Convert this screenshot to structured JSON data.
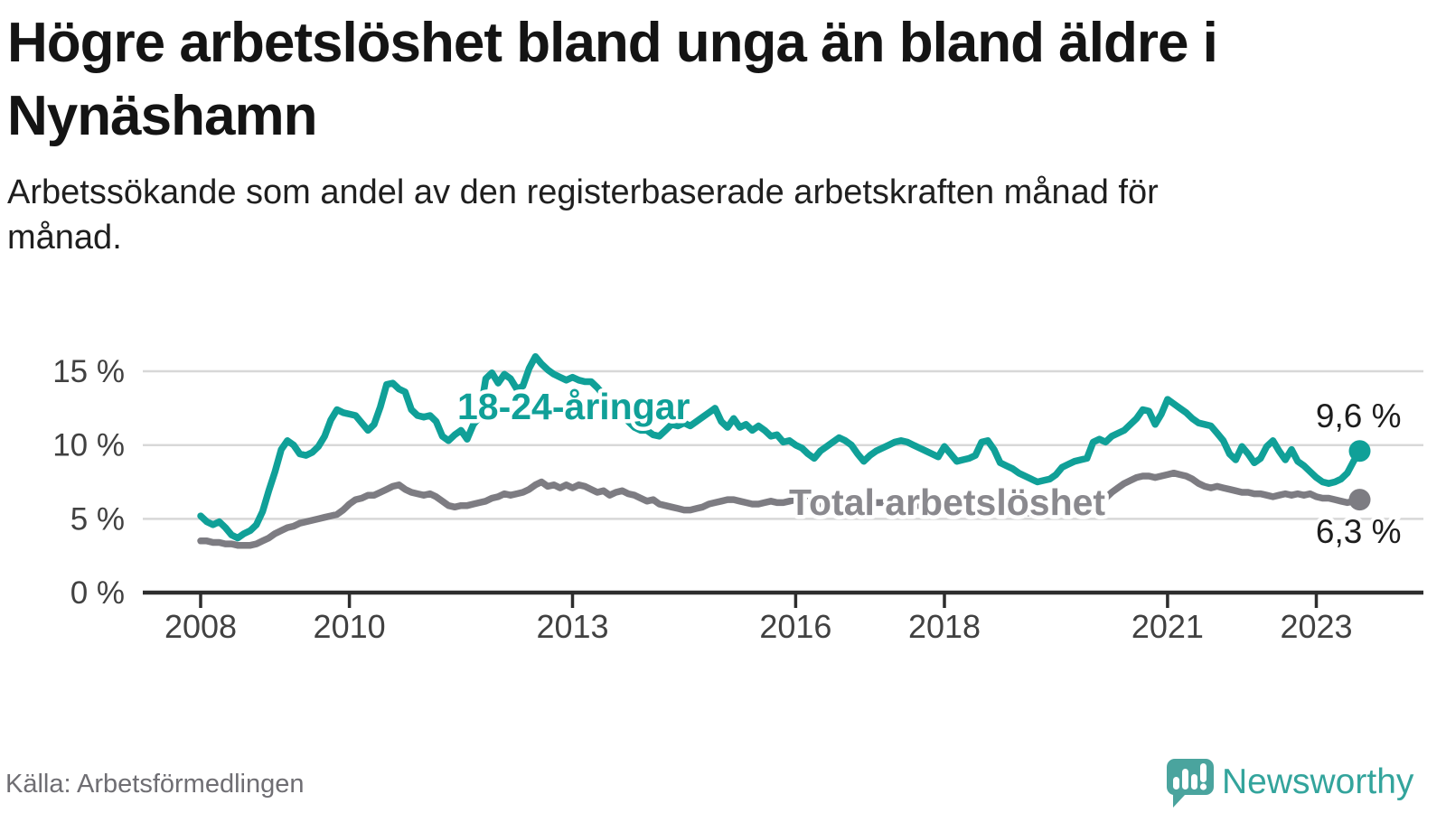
{
  "header": {
    "title": "Högre arbetslöshet bland unga än bland äldre i Nynäshamn",
    "subtitle": "Arbetssökande som andel av den registerbaserade arbetskraften månad för månad."
  },
  "footer": {
    "source": "Källa: Arbetsförmedlingen",
    "brand": "Newsworthy"
  },
  "colors": {
    "youth_line": "#10a098",
    "total_line": "#7d7c82",
    "total_label": "#8a898e",
    "end_label_text": "#1d1d1d",
    "grid": "#d8d8d8",
    "axis": "#2d2d2d",
    "tick_text": "#414141",
    "logo_teal": "#4aa49e"
  },
  "chart_data": {
    "type": "line",
    "title": "Högre arbetslöshet bland unga än bland äldre i Nynäshamn",
    "xlabel": "",
    "ylabel": "%",
    "frequency": "monthly",
    "x_start": "2008-01",
    "x_end": "2023-08",
    "ylim": [
      0,
      16.8
    ],
    "grid": "horizontal",
    "legend": "inline-labels",
    "y_tick_values": [
      0,
      5,
      10,
      15
    ],
    "y_tick_labels": [
      "0 %",
      "5 %",
      "10 %",
      "15 %"
    ],
    "x_tick_values": [
      2008,
      2010,
      2013,
      2016,
      2018,
      2021,
      2023
    ],
    "x_tick_labels": [
      "2008",
      "2010",
      "2013",
      "2016",
      "2018",
      "2021",
      "2023"
    ],
    "series": [
      {
        "name": "18-24-åringar",
        "color": "#10a098",
        "end_label": "9,6 %",
        "end_value": 9.6,
        "values": [
          5.2,
          4.8,
          4.6,
          4.8,
          4.4,
          3.9,
          3.7,
          4.0,
          4.2,
          4.6,
          5.5,
          6.9,
          8.2,
          9.7,
          10.3,
          10.0,
          9.4,
          9.3,
          9.5,
          9.9,
          10.6,
          11.7,
          12.4,
          12.2,
          12.1,
          12.0,
          11.5,
          11.0,
          11.4,
          12.6,
          14.1,
          14.2,
          13.8,
          13.6,
          12.4,
          12.0,
          11.9,
          12.0,
          11.6,
          10.6,
          10.3,
          10.7,
          11.0,
          10.4,
          11.4,
          11.9,
          14.5,
          14.9,
          14.2,
          14.8,
          14.5,
          13.8,
          14.0,
          15.2,
          16.0,
          15.5,
          15.1,
          14.8,
          14.6,
          14.4,
          14.6,
          14.4,
          14.3,
          14.3,
          13.9,
          13.4,
          12.9,
          12.4,
          12.0,
          11.6,
          11.2,
          11.0,
          11.0,
          10.7,
          10.6,
          11.0,
          11.4,
          11.3,
          11.5,
          11.3,
          11.6,
          11.9,
          12.2,
          12.5,
          11.6,
          11.2,
          11.8,
          11.2,
          11.4,
          11.0,
          11.3,
          11.0,
          10.6,
          10.7,
          10.2,
          10.3,
          10.0,
          9.8,
          9.4,
          9.1,
          9.6,
          9.9,
          10.2,
          10.5,
          10.3,
          10.0,
          9.4,
          8.9,
          9.3,
          9.6,
          9.8,
          10.0,
          10.2,
          10.3,
          10.2,
          10.0,
          9.8,
          9.6,
          9.4,
          9.2,
          9.9,
          9.4,
          8.9,
          9.0,
          9.1,
          9.3,
          10.2,
          10.3,
          9.7,
          8.8,
          8.6,
          8.4,
          8.1,
          7.9,
          7.7,
          7.5,
          7.6,
          7.7,
          8.0,
          8.5,
          8.7,
          8.9,
          9.0,
          9.1,
          10.2,
          10.4,
          10.2,
          10.6,
          10.8,
          11.0,
          11.4,
          11.8,
          12.4,
          12.3,
          11.4,
          12.1,
          13.1,
          12.8,
          12.5,
          12.2,
          11.8,
          11.5,
          11.4,
          11.3,
          10.8,
          10.3,
          9.4,
          9.0,
          9.9,
          9.4,
          8.8,
          9.1,
          9.9,
          10.3,
          9.6,
          9.0,
          9.7,
          8.9,
          8.6,
          8.2,
          7.8,
          7.5,
          7.4,
          7.5,
          7.7,
          8.1,
          8.9,
          9.6
        ]
      },
      {
        "name": "Total arbetslöshet",
        "color": "#7d7c82",
        "end_label": "6,3 %",
        "end_value": 6.3,
        "values": [
          3.5,
          3.5,
          3.4,
          3.4,
          3.3,
          3.3,
          3.2,
          3.2,
          3.2,
          3.3,
          3.5,
          3.7,
          4.0,
          4.2,
          4.4,
          4.5,
          4.7,
          4.8,
          4.9,
          5.0,
          5.1,
          5.2,
          5.3,
          5.6,
          6.0,
          6.3,
          6.4,
          6.6,
          6.6,
          6.8,
          7.0,
          7.2,
          7.3,
          7.0,
          6.8,
          6.7,
          6.6,
          6.7,
          6.5,
          6.2,
          5.9,
          5.8,
          5.9,
          5.9,
          6.0,
          6.1,
          6.2,
          6.4,
          6.5,
          6.7,
          6.6,
          6.7,
          6.8,
          7.0,
          7.3,
          7.5,
          7.2,
          7.3,
          7.1,
          7.3,
          7.1,
          7.3,
          7.2,
          7.0,
          6.8,
          6.9,
          6.6,
          6.8,
          6.9,
          6.7,
          6.6,
          6.4,
          6.2,
          6.3,
          6.0,
          5.9,
          5.8,
          5.7,
          5.6,
          5.6,
          5.7,
          5.8,
          6.0,
          6.1,
          6.2,
          6.3,
          6.3,
          6.2,
          6.1,
          6.0,
          6.0,
          6.1,
          6.2,
          6.1,
          6.1,
          6.2,
          6.3,
          6.3,
          6.2,
          6.1,
          6.0,
          5.9,
          6.0,
          6.1,
          6.2,
          6.2,
          6.1,
          6.0,
          6.0,
          6.1,
          6.1,
          6.0,
          6.0,
          5.9,
          6.0,
          5.9,
          5.9,
          5.8,
          5.8,
          5.9,
          5.8,
          5.8,
          5.7,
          5.6,
          5.6,
          5.5,
          5.6,
          5.6,
          5.5,
          5.5,
          5.4,
          5.5,
          5.5,
          5.4,
          5.4,
          5.4,
          5.5,
          5.5,
          5.6,
          5.6,
          5.7,
          5.7,
          5.8,
          5.9,
          6.0,
          6.1,
          6.4,
          6.8,
          7.1,
          7.4,
          7.6,
          7.8,
          7.9,
          7.9,
          7.8,
          7.9,
          8.0,
          8.1,
          8.0,
          7.9,
          7.7,
          7.4,
          7.2,
          7.1,
          7.2,
          7.1,
          7.0,
          6.9,
          6.8,
          6.8,
          6.7,
          6.7,
          6.6,
          6.5,
          6.6,
          6.7,
          6.6,
          6.7,
          6.6,
          6.7,
          6.5,
          6.4,
          6.4,
          6.3,
          6.2,
          6.1,
          6.2,
          6.3
        ]
      }
    ]
  }
}
